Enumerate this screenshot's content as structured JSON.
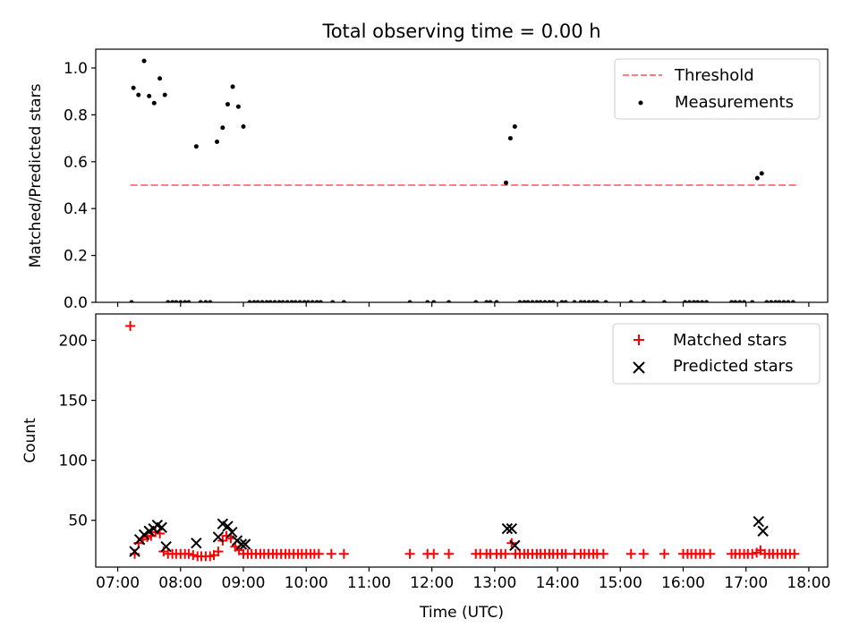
{
  "title": "Total observing time = 0.00 h",
  "colors": {
    "threshold": "#ff7f7f",
    "measurements": "#000000",
    "matched": "#ff0000",
    "predicted": "#000000",
    "axes": "#000000",
    "legend_border": "#cccccc"
  },
  "chart_data": [
    {
      "type": "scatter",
      "name": "ratio-panel",
      "ylabel": "Matched/Predicted stars",
      "xlabel": "",
      "xlim": [
        6.65,
        18.3
      ],
      "ylim": [
        0,
        1.08
      ],
      "xticks": [
        7,
        8,
        9,
        10,
        11,
        12,
        13,
        14,
        15,
        16,
        17,
        18
      ],
      "yticks": [
        0.0,
        0.2,
        0.4,
        0.6,
        0.8,
        1.0
      ],
      "ytick_labels": [
        "0.0",
        "0.2",
        "0.4",
        "0.6",
        "0.8",
        "1.0"
      ],
      "xtick_labels_visible": false,
      "legend": {
        "placement": "top-right",
        "entries": [
          "Threshold",
          "Measurements"
        ]
      },
      "threshold": {
        "name": "Threshold",
        "value": 0.5,
        "x": [
          7.2,
          17.8
        ],
        "style": "dashed"
      },
      "series": [
        {
          "name": "Measurements",
          "points": [
            [
              7.22,
              0.0
            ],
            [
              7.25,
              0.915
            ],
            [
              7.33,
              0.885
            ],
            [
              7.42,
              1.03
            ],
            [
              7.5,
              0.88
            ],
            [
              7.58,
              0.85
            ],
            [
              7.67,
              0.955
            ],
            [
              7.75,
              0.885
            ],
            [
              7.8,
              0.0
            ],
            [
              7.87,
              0.0
            ],
            [
              7.93,
              0.0
            ],
            [
              8.0,
              0.0
            ],
            [
              8.07,
              0.0
            ],
            [
              8.13,
              0.0
            ],
            [
              8.25,
              0.665
            ],
            [
              8.32,
              0.0
            ],
            [
              8.4,
              0.0
            ],
            [
              8.47,
              0.0
            ],
            [
              8.58,
              0.685
            ],
            [
              8.67,
              0.745
            ],
            [
              8.75,
              0.845
            ],
            [
              8.83,
              0.92
            ],
            [
              8.92,
              0.835
            ],
            [
              9.0,
              0.75
            ],
            [
              9.1,
              0.0
            ],
            [
              9.17,
              0.0
            ],
            [
              9.23,
              0.0
            ],
            [
              9.3,
              0.0
            ],
            [
              9.37,
              0.0
            ],
            [
              9.43,
              0.0
            ],
            [
              9.5,
              0.0
            ],
            [
              9.57,
              0.0
            ],
            [
              9.63,
              0.0
            ],
            [
              9.7,
              0.0
            ],
            [
              9.77,
              0.0
            ],
            [
              9.83,
              0.0
            ],
            [
              9.9,
              0.0
            ],
            [
              9.97,
              0.0
            ],
            [
              10.03,
              0.0
            ],
            [
              10.1,
              0.0
            ],
            [
              10.17,
              0.0
            ],
            [
              10.23,
              0.0
            ],
            [
              10.42,
              0.0
            ],
            [
              10.6,
              0.0
            ],
            [
              11.65,
              0.0
            ],
            [
              11.93,
              0.0
            ],
            [
              12.03,
              0.0
            ],
            [
              12.27,
              0.0
            ],
            [
              12.7,
              0.0
            ],
            [
              12.87,
              0.0
            ],
            [
              12.93,
              0.0
            ],
            [
              13.03,
              0.0
            ],
            [
              13.18,
              0.51
            ],
            [
              13.25,
              0.7
            ],
            [
              13.32,
              0.75
            ],
            [
              13.4,
              0.0
            ],
            [
              13.47,
              0.0
            ],
            [
              13.53,
              0.0
            ],
            [
              13.6,
              0.0
            ],
            [
              13.67,
              0.0
            ],
            [
              13.73,
              0.0
            ],
            [
              13.8,
              0.0
            ],
            [
              13.87,
              0.0
            ],
            [
              13.93,
              0.0
            ],
            [
              14.07,
              0.0
            ],
            [
              14.13,
              0.0
            ],
            [
              14.27,
              0.0
            ],
            [
              14.37,
              0.0
            ],
            [
              14.43,
              0.0
            ],
            [
              14.5,
              0.0
            ],
            [
              14.57,
              0.0
            ],
            [
              14.63,
              0.0
            ],
            [
              14.77,
              0.0
            ],
            [
              15.17,
              0.0
            ],
            [
              15.37,
              0.0
            ],
            [
              15.7,
              0.0
            ],
            [
              16.03,
              0.0
            ],
            [
              16.1,
              0.0
            ],
            [
              16.17,
              0.0
            ],
            [
              16.23,
              0.0
            ],
            [
              16.3,
              0.0
            ],
            [
              16.37,
              0.0
            ],
            [
              16.77,
              0.0
            ],
            [
              16.83,
              0.0
            ],
            [
              16.9,
              0.0
            ],
            [
              16.97,
              0.0
            ],
            [
              17.1,
              0.0
            ],
            [
              17.18,
              0.53
            ],
            [
              17.25,
              0.55
            ],
            [
              17.33,
              0.0
            ],
            [
              17.4,
              0.0
            ],
            [
              17.47,
              0.0
            ],
            [
              17.53,
              0.0
            ],
            [
              17.6,
              0.0
            ],
            [
              17.67,
              0.0
            ],
            [
              17.75,
              0.0
            ]
          ]
        }
      ]
    },
    {
      "type": "scatter",
      "name": "count-panel",
      "ylabel": "Count",
      "xlabel": "Time (UTC)",
      "xlim": [
        6.65,
        18.3
      ],
      "ylim": [
        11,
        222
      ],
      "xticks": [
        7,
        8,
        9,
        10,
        11,
        12,
        13,
        14,
        15,
        16,
        17,
        18
      ],
      "xtick_labels": [
        "07:00",
        "08:00",
        "09:00",
        "10:00",
        "11:00",
        "12:00",
        "13:00",
        "14:00",
        "15:00",
        "16:00",
        "17:00",
        "18:00"
      ],
      "yticks": [
        50,
        100,
        150,
        200
      ],
      "ytick_labels": [
        "50",
        "100",
        "150",
        "200"
      ],
      "legend": {
        "placement": "top-right",
        "entries": [
          "Matched stars",
          "Predicted stars"
        ]
      },
      "series": [
        {
          "name": "Matched stars",
          "marker": "plus",
          "points": [
            [
              7.2,
              212
            ],
            [
              7.27,
              22
            ],
            [
              7.33,
              31
            ],
            [
              7.4,
              34
            ],
            [
              7.47,
              36
            ],
            [
              7.53,
              37
            ],
            [
              7.6,
              40
            ],
            [
              7.67,
              39
            ],
            [
              7.73,
              24
            ],
            [
              7.8,
              22
            ],
            [
              7.87,
              22
            ],
            [
              7.93,
              22
            ],
            [
              8.0,
              22
            ],
            [
              8.07,
              22
            ],
            [
              8.13,
              22
            ],
            [
              8.2,
              21
            ],
            [
              8.27,
              20
            ],
            [
              8.33,
              20
            ],
            [
              8.4,
              20
            ],
            [
              8.47,
              20
            ],
            [
              8.53,
              21
            ],
            [
              8.6,
              24
            ],
            [
              8.67,
              33
            ],
            [
              8.73,
              37
            ],
            [
              8.8,
              35
            ],
            [
              8.87,
              28
            ],
            [
              8.93,
              25
            ],
            [
              9.0,
              22
            ],
            [
              9.07,
              22
            ],
            [
              9.13,
              22
            ],
            [
              9.2,
              22
            ],
            [
              9.27,
              22
            ],
            [
              9.33,
              22
            ],
            [
              9.4,
              22
            ],
            [
              9.47,
              22
            ],
            [
              9.53,
              22
            ],
            [
              9.6,
              22
            ],
            [
              9.67,
              22
            ],
            [
              9.73,
              22
            ],
            [
              9.8,
              22
            ],
            [
              9.87,
              22
            ],
            [
              9.93,
              22
            ],
            [
              10.0,
              22
            ],
            [
              10.07,
              22
            ],
            [
              10.13,
              22
            ],
            [
              10.2,
              22
            ],
            [
              10.4,
              22
            ],
            [
              10.6,
              22
            ],
            [
              11.65,
              22
            ],
            [
              11.93,
              22
            ],
            [
              12.03,
              22
            ],
            [
              12.27,
              22
            ],
            [
              12.7,
              22
            ],
            [
              12.77,
              22
            ],
            [
              12.87,
              22
            ],
            [
              12.93,
              22
            ],
            [
              13.03,
              22
            ],
            [
              13.1,
              22
            ],
            [
              13.17,
              22
            ],
            [
              13.27,
              31
            ],
            [
              13.33,
              22
            ],
            [
              13.4,
              22
            ],
            [
              13.47,
              22
            ],
            [
              13.53,
              22
            ],
            [
              13.6,
              22
            ],
            [
              13.67,
              22
            ],
            [
              13.73,
              22
            ],
            [
              13.8,
              22
            ],
            [
              13.87,
              22
            ],
            [
              13.93,
              22
            ],
            [
              14.0,
              22
            ],
            [
              14.07,
              22
            ],
            [
              14.13,
              22
            ],
            [
              14.27,
              22
            ],
            [
              14.37,
              22
            ],
            [
              14.43,
              22
            ],
            [
              14.5,
              22
            ],
            [
              14.57,
              22
            ],
            [
              14.63,
              22
            ],
            [
              14.73,
              22
            ],
            [
              15.17,
              22
            ],
            [
              15.37,
              22
            ],
            [
              15.7,
              22
            ],
            [
              16.0,
              22
            ],
            [
              16.07,
              22
            ],
            [
              16.13,
              22
            ],
            [
              16.2,
              22
            ],
            [
              16.27,
              22
            ],
            [
              16.33,
              22
            ],
            [
              16.43,
              22
            ],
            [
              16.77,
              22
            ],
            [
              16.83,
              22
            ],
            [
              16.9,
              22
            ],
            [
              16.97,
              22
            ],
            [
              17.03,
              22
            ],
            [
              17.1,
              22
            ],
            [
              17.17,
              23
            ],
            [
              17.23,
              25
            ],
            [
              17.3,
              22
            ],
            [
              17.37,
              22
            ],
            [
              17.43,
              22
            ],
            [
              17.5,
              22
            ],
            [
              17.57,
              22
            ],
            [
              17.63,
              22
            ],
            [
              17.7,
              22
            ],
            [
              17.77,
              22
            ]
          ]
        },
        {
          "name": "Predicted stars",
          "marker": "x",
          "points": [
            [
              7.27,
              24
            ],
            [
              7.35,
              34
            ],
            [
              7.42,
              38
            ],
            [
              7.5,
              41
            ],
            [
              7.57,
              43
            ],
            [
              7.63,
              46
            ],
            [
              7.7,
              44
            ],
            [
              7.77,
              28
            ],
            [
              8.25,
              31
            ],
            [
              8.6,
              36
            ],
            [
              8.67,
              47
            ],
            [
              8.75,
              45
            ],
            [
              8.82,
              40
            ],
            [
              8.9,
              33
            ],
            [
              8.97,
              30
            ],
            [
              9.03,
              30
            ],
            [
              13.2,
              43
            ],
            [
              13.27,
              43
            ],
            [
              13.32,
              29
            ],
            [
              17.2,
              49
            ],
            [
              17.27,
              41
            ]
          ]
        }
      ]
    }
  ]
}
